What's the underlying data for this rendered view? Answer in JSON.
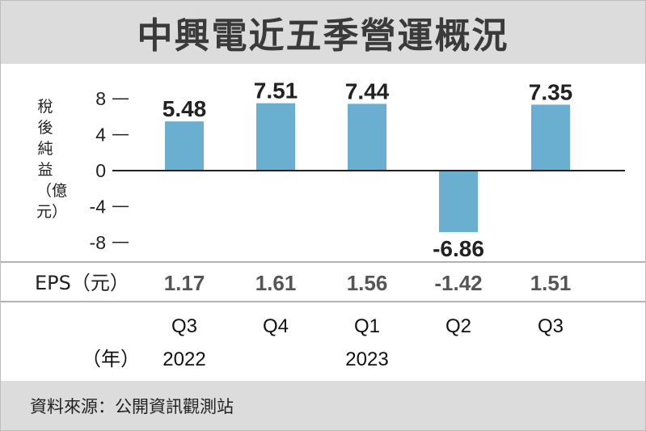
{
  "title": "中興電近五季營運概況",
  "source": "資料來源：公開資訊觀測站",
  "colors": {
    "bar": "#6aaed0",
    "title_bg": "#dcdcdc",
    "axis": "#222222"
  },
  "chart_data": {
    "type": "bar",
    "ylabel": "稅後純益（億元）",
    "ylim": [
      -10,
      10
    ],
    "yticks": [
      8,
      4,
      0,
      -4,
      -8
    ],
    "categories": [
      "Q3",
      "Q4",
      "Q1",
      "Q2",
      "Q3"
    ],
    "values": [
      5.48,
      7.51,
      7.44,
      -6.86,
      7.35
    ],
    "value_labels": [
      "5.48",
      "7.51",
      "7.44",
      "-6.86",
      "7.35"
    ],
    "eps": {
      "label": "EPS（元）",
      "values": [
        "1.17",
        "1.61",
        "1.56",
        "-1.42",
        "1.51"
      ]
    },
    "year_unit": "（年）",
    "years": [
      {
        "label": "2022",
        "category_index": 0
      },
      {
        "label": "2023",
        "category_index": 2
      }
    ]
  }
}
